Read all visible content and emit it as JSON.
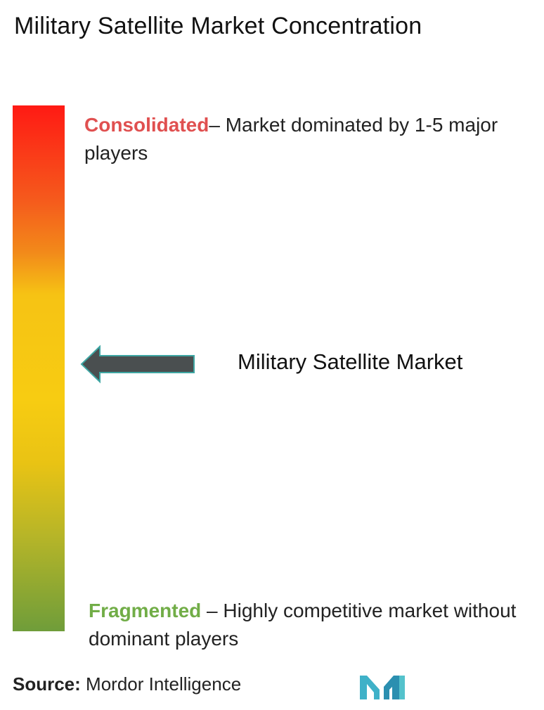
{
  "title": "Military Satellite Market Concentration",
  "scale": {
    "top": {
      "keyword": "Consolidated",
      "description": "– Market dominated by 1-5 major players",
      "color": "#e05050"
    },
    "bottom": {
      "keyword": "Fragmented",
      "description": " – Highly competitive market without dominant players",
      "color": "#71ad47"
    },
    "gradient_colors": [
      "#ff1a14",
      "#f28a1a",
      "#f7cc12",
      "#6f9d3a"
    ]
  },
  "marker": {
    "label": "Military Satellite Market",
    "icon": "left-arrow-icon",
    "color": "#4a4f50"
  },
  "source": {
    "label": "Source:",
    "value": " Mordor Intelligence"
  },
  "logo": {
    "icon": "mordor-intelligence-logo",
    "color": "#3fb1c8"
  }
}
